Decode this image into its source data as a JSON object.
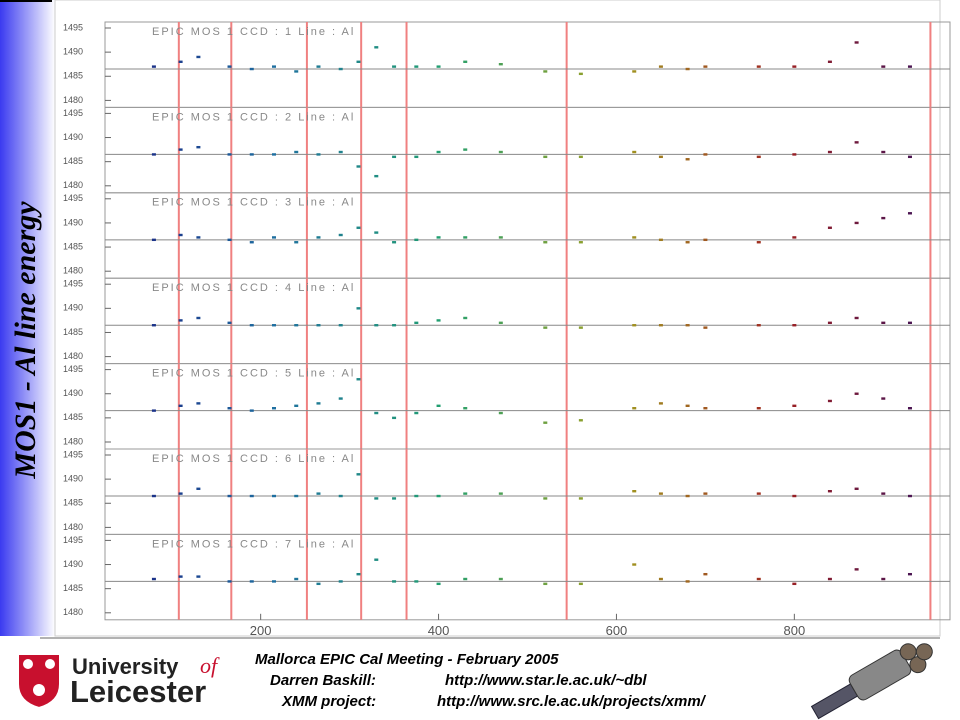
{
  "slide_title": "MOS1 - Al line energy",
  "footer": {
    "university": "University",
    "of": "of",
    "city": "Leicester",
    "meeting": "Mallorca EPIC Cal Meeting - February 2005",
    "author": "Darren Baskill:",
    "author_url": "http://www.star.le.ac.uk/~dbl",
    "project": "XMM project:",
    "project_url": "http://www.src.le.ac.uk/projects/xmm/"
  },
  "chart_data": [
    {
      "type": "scatter",
      "title": "EPIC MOS 1 CCD : 1 Line : Al",
      "xlim": [
        25,
        975
      ],
      "ylim": [
        1480,
        1495
      ],
      "yticks": [
        1480,
        1485,
        1490,
        1495
      ],
      "reference_line": 1486.5,
      "event_lines": [
        108,
        167,
        252,
        313,
        364,
        544,
        953
      ],
      "color_scale": [
        "#1a1a80",
        "#1e6fa0",
        "#22a070",
        "#a0a020",
        "#a02020",
        "#301060"
      ],
      "x": [
        80,
        110,
        130,
        165,
        190,
        215,
        240,
        265,
        290,
        310,
        330,
        350,
        375,
        400,
        430,
        470,
        520,
        560,
        620,
        650,
        680,
        700,
        760,
        800,
        840,
        870,
        900,
        930
      ],
      "values": [
        1487,
        1488,
        1489,
        1487,
        1486.5,
        1487,
        1486,
        1487,
        1486.5,
        1488,
        1491,
        1487,
        1487,
        1487,
        1488,
        1487.5,
        1486,
        1485.5,
        1486,
        1487,
        1486.5,
        1487,
        1487,
        1487,
        1488,
        1492,
        1487,
        1487
      ]
    },
    {
      "type": "scatter",
      "title": "EPIC MOS 1 CCD : 2 Line : Al",
      "xlim": [
        25,
        975
      ],
      "ylim": [
        1480,
        1495
      ],
      "yticks": [
        1480,
        1485,
        1490,
        1495
      ],
      "reference_line": 1486.5,
      "event_lines": [
        108,
        167,
        252,
        313,
        364,
        544,
        953
      ],
      "color_scale": [
        "#1a1a80",
        "#1e6fa0",
        "#22a070",
        "#a0a020",
        "#a02020",
        "#301060"
      ],
      "x": [
        80,
        110,
        130,
        165,
        190,
        215,
        240,
        265,
        290,
        310,
        330,
        350,
        375,
        400,
        430,
        470,
        520,
        560,
        620,
        650,
        680,
        700,
        760,
        800,
        840,
        870,
        900,
        930
      ],
      "values": [
        1486.5,
        1487.5,
        1488,
        1486.5,
        1486.5,
        1486.5,
        1487,
        1486.5,
        1487,
        1484,
        1482,
        1486,
        1486,
        1487,
        1487.5,
        1487,
        1486,
        1486,
        1487,
        1486,
        1485.5,
        1486.5,
        1486,
        1486.5,
        1487,
        1489,
        1487,
        1486
      ]
    },
    {
      "type": "scatter",
      "title": "EPIC MOS 1 CCD : 3 Line : Al",
      "xlim": [
        25,
        975
      ],
      "ylim": [
        1480,
        1495
      ],
      "yticks": [
        1480,
        1485,
        1490,
        1495
      ],
      "reference_line": 1486.5,
      "event_lines": [
        108,
        167,
        252,
        313,
        364,
        544,
        953
      ],
      "color_scale": [
        "#1a1a80",
        "#1e6fa0",
        "#22a070",
        "#a0a020",
        "#a02020",
        "#301060"
      ],
      "x": [
        80,
        110,
        130,
        165,
        190,
        215,
        240,
        265,
        290,
        310,
        330,
        350,
        375,
        400,
        430,
        470,
        520,
        560,
        620,
        650,
        680,
        700,
        760,
        800,
        840,
        870,
        900,
        930
      ],
      "values": [
        1486.5,
        1487.5,
        1487,
        1486.5,
        1486,
        1487,
        1486,
        1487,
        1487.5,
        1489,
        1488,
        1486,
        1486.5,
        1487,
        1487,
        1487,
        1486,
        1486,
        1487,
        1486.5,
        1486,
        1486.5,
        1486,
        1487,
        1489,
        1490,
        1491,
        1492
      ]
    },
    {
      "type": "scatter",
      "title": "EPIC MOS 1 CCD : 4 Line : Al",
      "xlim": [
        25,
        975
      ],
      "ylim": [
        1480,
        1495
      ],
      "yticks": [
        1480,
        1485,
        1490,
        1495
      ],
      "reference_line": 1486.5,
      "event_lines": [
        108,
        167,
        252,
        313,
        364,
        544,
        953
      ],
      "color_scale": [
        "#1a1a80",
        "#1e6fa0",
        "#22a070",
        "#a0a020",
        "#a02020",
        "#301060"
      ],
      "x": [
        80,
        110,
        130,
        165,
        190,
        215,
        240,
        265,
        290,
        310,
        330,
        350,
        375,
        400,
        430,
        470,
        520,
        560,
        620,
        650,
        680,
        700,
        760,
        800,
        840,
        870,
        900,
        930
      ],
      "values": [
        1486.5,
        1487.5,
        1488,
        1487,
        1486.5,
        1486.5,
        1486.5,
        1486.5,
        1486.5,
        1490,
        1486.5,
        1486.5,
        1487,
        1487.5,
        1488,
        1487,
        1486,
        1486,
        1486.5,
        1486.5,
        1486.5,
        1486,
        1486.5,
        1486.5,
        1487,
        1488,
        1487,
        1487
      ]
    },
    {
      "type": "scatter",
      "title": "EPIC MOS 1 CCD : 5 Line : Al",
      "xlim": [
        25,
        975
      ],
      "ylim": [
        1480,
        1495
      ],
      "yticks": [
        1480,
        1485,
        1490,
        1495
      ],
      "reference_line": 1486.5,
      "event_lines": [
        108,
        167,
        252,
        313,
        364,
        544,
        953
      ],
      "color_scale": [
        "#1a1a80",
        "#1e6fa0",
        "#22a070",
        "#a0a020",
        "#a02020",
        "#301060"
      ],
      "x": [
        80,
        110,
        130,
        165,
        190,
        215,
        240,
        265,
        290,
        310,
        330,
        350,
        375,
        400,
        430,
        470,
        520,
        560,
        620,
        650,
        680,
        700,
        760,
        800,
        840,
        870,
        900,
        930
      ],
      "values": [
        1486.5,
        1487.5,
        1488,
        1487,
        1486.5,
        1487,
        1487.5,
        1488,
        1489,
        1493,
        1486,
        1485,
        1486,
        1487.5,
        1487,
        1486,
        1484,
        1484.5,
        1487,
        1488,
        1487.5,
        1487,
        1487,
        1487.5,
        1488.5,
        1490,
        1489,
        1487
      ]
    },
    {
      "type": "scatter",
      "title": "EPIC MOS 1 CCD : 6 Line : Al",
      "xlim": [
        25,
        975
      ],
      "ylim": [
        1480,
        1495
      ],
      "yticks": [
        1480,
        1485,
        1490,
        1495
      ],
      "reference_line": 1486.5,
      "event_lines": [
        108,
        167,
        252,
        313,
        364,
        544,
        953
      ],
      "color_scale": [
        "#1a1a80",
        "#1e6fa0",
        "#22a070",
        "#a0a020",
        "#a02020",
        "#301060"
      ],
      "x": [
        80,
        110,
        130,
        165,
        190,
        215,
        240,
        265,
        290,
        310,
        330,
        350,
        375,
        400,
        430,
        470,
        520,
        560,
        620,
        650,
        680,
        700,
        760,
        800,
        840,
        870,
        900,
        930
      ],
      "values": [
        1486.5,
        1487,
        1488,
        1486.5,
        1486.5,
        1486.5,
        1486.5,
        1487,
        1486.5,
        1491,
        1486,
        1486,
        1486.5,
        1486.5,
        1487,
        1487,
        1486,
        1486,
        1487.5,
        1487,
        1486.5,
        1487,
        1487,
        1486.5,
        1487.5,
        1488,
        1487,
        1486.5
      ]
    },
    {
      "type": "scatter",
      "title": "EPIC MOS 1 CCD : 7 Line : Al",
      "xlim": [
        25,
        975
      ],
      "ylim": [
        1480,
        1495
      ],
      "yticks": [
        1480,
        1485,
        1490,
        1495
      ],
      "xticks": [
        200,
        400,
        600,
        800
      ],
      "reference_line": 1486.5,
      "event_lines": [
        108,
        167,
        252,
        313,
        364,
        544,
        953
      ],
      "color_scale": [
        "#1a1a80",
        "#1e6fa0",
        "#22a070",
        "#a0a020",
        "#a02020",
        "#301060"
      ],
      "x": [
        80,
        110,
        130,
        165,
        190,
        215,
        240,
        265,
        290,
        310,
        330,
        350,
        375,
        400,
        430,
        470,
        520,
        560,
        620,
        650,
        680,
        700,
        760,
        800,
        840,
        870,
        900,
        930
      ],
      "values": [
        1487,
        1487.5,
        1487.5,
        1486.5,
        1486.5,
        1486.5,
        1487,
        1486,
        1486.5,
        1488,
        1491,
        1486.5,
        1486.5,
        1486,
        1487,
        1487,
        1486,
        1486,
        1490,
        1487,
        1486.5,
        1488,
        1487,
        1486,
        1487,
        1489,
        1487,
        1488
      ]
    }
  ]
}
